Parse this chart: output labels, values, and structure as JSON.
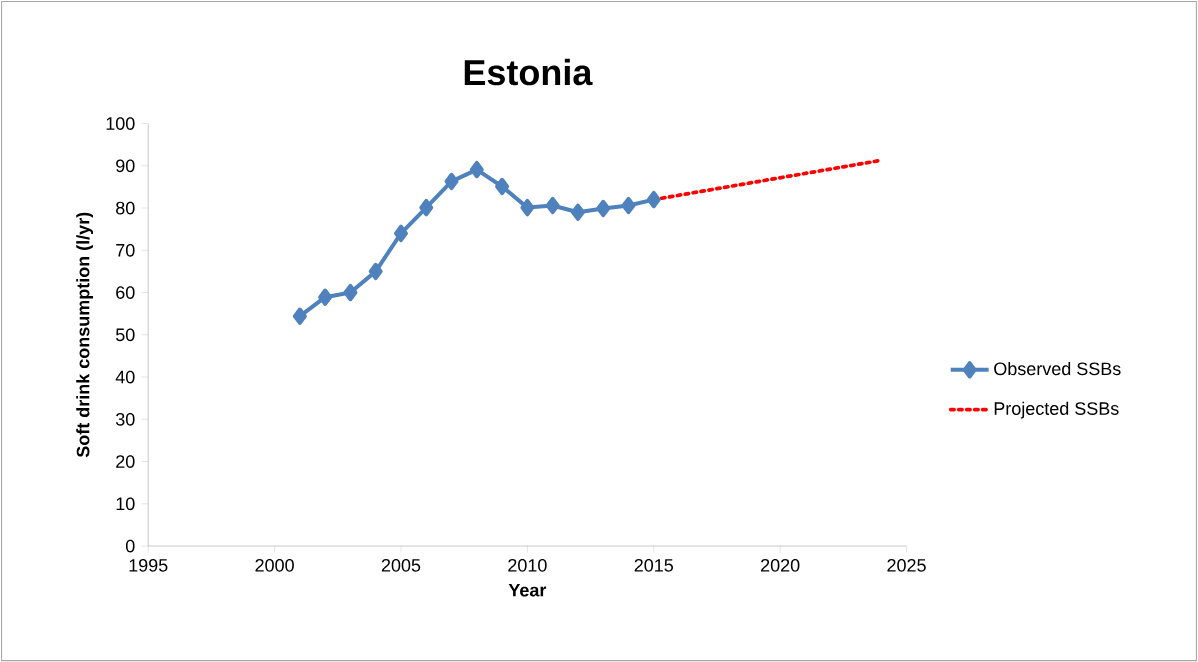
{
  "chart_data": {
    "type": "line",
    "title": "Estonia",
    "xlabel": "Year",
    "ylabel": "Soft drink consumption (l/yr)",
    "series": [
      {
        "name": "Observed SSBs",
        "color": "#4f81bd",
        "marker": "diamond",
        "line_style": "solid",
        "x": [
          2001,
          2002,
          2003,
          2004,
          2005,
          2006,
          2007,
          2008,
          2009,
          2010,
          2011,
          2012,
          2013,
          2014,
          2015
        ],
        "values": [
          54.4,
          58.9,
          60.0,
          65.0,
          74.0,
          80.1,
          86.3,
          89.1,
          85.1,
          80.1,
          80.6,
          79.0,
          79.9,
          80.6,
          82.0
        ]
      },
      {
        "name": "Projected SSBs",
        "color": "#ff0000",
        "marker": "none",
        "line_style": "dotted",
        "x": [
          2015,
          2024
        ],
        "values": [
          82.0,
          91.3
        ]
      }
    ],
    "xlim": [
      1995,
      2025
    ],
    "xticks": [
      1995,
      2000,
      2005,
      2010,
      2015,
      2020,
      2025
    ],
    "ylim": [
      0,
      100
    ],
    "yticks": [
      0,
      10,
      20,
      30,
      40,
      50,
      60,
      70,
      80,
      90,
      100
    ],
    "grid": false,
    "legend": "right"
  }
}
